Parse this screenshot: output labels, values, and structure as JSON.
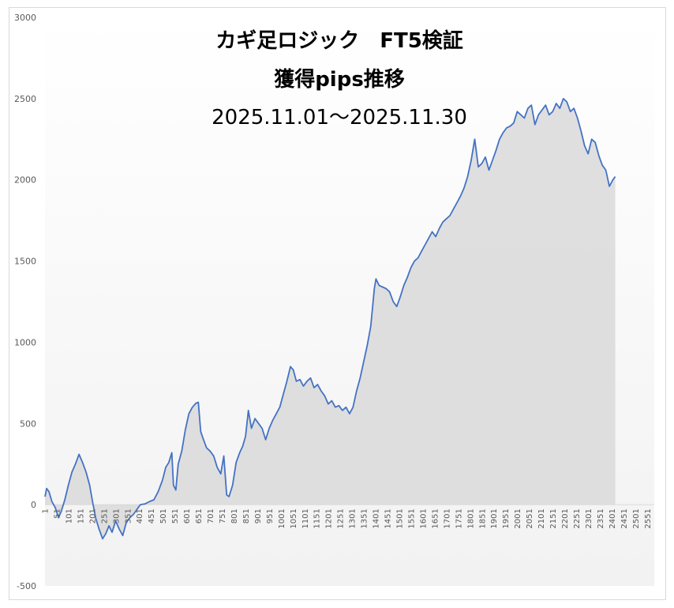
{
  "chart_data": {
    "type": "area",
    "title_lines": [
      "カギ足ロジック　FT5検証",
      "獲得pips推移",
      "2025.11.01～2025.11.30"
    ],
    "xlabel": "",
    "ylabel": "",
    "ylim": [
      -500,
      3000
    ],
    "y_ticks": [
      3000,
      2500,
      2000,
      1500,
      1000,
      500,
      0,
      -500
    ],
    "xlim": [
      1,
      2580
    ],
    "x_ticks": [
      1,
      51,
      101,
      151,
      201,
      251,
      301,
      351,
      401,
      451,
      501,
      551,
      601,
      651,
      701,
      751,
      801,
      851,
      901,
      951,
      1001,
      1051,
      1101,
      1151,
      1201,
      1251,
      1301,
      1351,
      1401,
      1451,
      1501,
      1551,
      1601,
      1651,
      1701,
      1751,
      1801,
      1851,
      1901,
      1951,
      2001,
      2051,
      2101,
      2151,
      2201,
      2251,
      2301,
      2351,
      2401,
      2451,
      2501,
      2551
    ],
    "grid": false,
    "legend": "none",
    "line_color": "#4472c4",
    "fill_color": "#d9d9d9",
    "series": [
      {
        "points": [
          [
            1,
            50
          ],
          [
            8,
            100
          ],
          [
            18,
            80
          ],
          [
            30,
            20
          ],
          [
            45,
            -20
          ],
          [
            58,
            -80
          ],
          [
            70,
            -40
          ],
          [
            85,
            30
          ],
          [
            100,
            120
          ],
          [
            115,
            200
          ],
          [
            130,
            250
          ],
          [
            145,
            310
          ],
          [
            160,
            260
          ],
          [
            175,
            200
          ],
          [
            190,
            120
          ],
          [
            202,
            20
          ],
          [
            215,
            -80
          ],
          [
            230,
            -150
          ],
          [
            245,
            -210
          ],
          [
            258,
            -180
          ],
          [
            272,
            -130
          ],
          [
            285,
            -170
          ],
          [
            300,
            -100
          ],
          [
            315,
            -150
          ],
          [
            330,
            -190
          ],
          [
            345,
            -110
          ],
          [
            360,
            -80
          ],
          [
            375,
            -60
          ],
          [
            390,
            -30
          ],
          [
            405,
            0
          ],
          [
            425,
            5
          ],
          [
            445,
            20
          ],
          [
            462,
            30
          ],
          [
            480,
            80
          ],
          [
            498,
            150
          ],
          [
            512,
            230
          ],
          [
            525,
            260
          ],
          [
            538,
            320
          ],
          [
            545,
            120
          ],
          [
            555,
            90
          ],
          [
            565,
            250
          ],
          [
            580,
            330
          ],
          [
            595,
            460
          ],
          [
            610,
            560
          ],
          [
            625,
            600
          ],
          [
            640,
            625
          ],
          [
            650,
            630
          ],
          [
            660,
            450
          ],
          [
            672,
            400
          ],
          [
            685,
            350
          ],
          [
            700,
            330
          ],
          [
            715,
            300
          ],
          [
            730,
            230
          ],
          [
            745,
            190
          ],
          [
            758,
            300
          ],
          [
            770,
            60
          ],
          [
            780,
            50
          ],
          [
            795,
            120
          ],
          [
            810,
            260
          ],
          [
            825,
            320
          ],
          [
            838,
            360
          ],
          [
            850,
            420
          ],
          [
            862,
            580
          ],
          [
            875,
            470
          ],
          [
            890,
            530
          ],
          [
            905,
            500
          ],
          [
            920,
            470
          ],
          [
            935,
            400
          ],
          [
            950,
            470
          ],
          [
            965,
            520
          ],
          [
            980,
            560
          ],
          [
            995,
            600
          ],
          [
            1010,
            680
          ],
          [
            1025,
            760
          ],
          [
            1040,
            850
          ],
          [
            1052,
            830
          ],
          [
            1065,
            760
          ],
          [
            1080,
            770
          ],
          [
            1095,
            730
          ],
          [
            1110,
            760
          ],
          [
            1125,
            780
          ],
          [
            1140,
            720
          ],
          [
            1155,
            740
          ],
          [
            1170,
            700
          ],
          [
            1185,
            670
          ],
          [
            1200,
            620
          ],
          [
            1215,
            640
          ],
          [
            1230,
            600
          ],
          [
            1245,
            610
          ],
          [
            1260,
            580
          ],
          [
            1275,
            600
          ],
          [
            1290,
            560
          ],
          [
            1305,
            600
          ],
          [
            1320,
            700
          ],
          [
            1335,
            780
          ],
          [
            1350,
            880
          ],
          [
            1365,
            980
          ],
          [
            1380,
            1100
          ],
          [
            1395,
            1330
          ],
          [
            1402,
            1390
          ],
          [
            1415,
            1350
          ],
          [
            1430,
            1340
          ],
          [
            1445,
            1330
          ],
          [
            1460,
            1310
          ],
          [
            1475,
            1250
          ],
          [
            1490,
            1220
          ],
          [
            1505,
            1280
          ],
          [
            1520,
            1350
          ],
          [
            1535,
            1400
          ],
          [
            1550,
            1460
          ],
          [
            1565,
            1500
          ],
          [
            1580,
            1520
          ],
          [
            1595,
            1560
          ],
          [
            1610,
            1600
          ],
          [
            1625,
            1640
          ],
          [
            1640,
            1680
          ],
          [
            1655,
            1650
          ],
          [
            1670,
            1700
          ],
          [
            1685,
            1740
          ],
          [
            1700,
            1760
          ],
          [
            1715,
            1780
          ],
          [
            1730,
            1820
          ],
          [
            1745,
            1860
          ],
          [
            1760,
            1900
          ],
          [
            1775,
            1950
          ],
          [
            1790,
            2020
          ],
          [
            1805,
            2120
          ],
          [
            1820,
            2250
          ],
          [
            1835,
            2080
          ],
          [
            1850,
            2100
          ],
          [
            1865,
            2140
          ],
          [
            1880,
            2060
          ],
          [
            1895,
            2120
          ],
          [
            1910,
            2180
          ],
          [
            1925,
            2250
          ],
          [
            1940,
            2290
          ],
          [
            1955,
            2320
          ],
          [
            1970,
            2330
          ],
          [
            1985,
            2350
          ],
          [
            2000,
            2420
          ],
          [
            2015,
            2400
          ],
          [
            2030,
            2380
          ],
          [
            2045,
            2440
          ],
          [
            2060,
            2460
          ],
          [
            2075,
            2340
          ],
          [
            2090,
            2400
          ],
          [
            2105,
            2430
          ],
          [
            2120,
            2460
          ],
          [
            2135,
            2400
          ],
          [
            2150,
            2420
          ],
          [
            2165,
            2470
          ],
          [
            2180,
            2440
          ],
          [
            2195,
            2500
          ],
          [
            2210,
            2480
          ],
          [
            2225,
            2420
          ],
          [
            2240,
            2440
          ],
          [
            2255,
            2380
          ],
          [
            2270,
            2300
          ],
          [
            2285,
            2210
          ],
          [
            2300,
            2160
          ],
          [
            2315,
            2250
          ],
          [
            2330,
            2230
          ],
          [
            2345,
            2150
          ],
          [
            2360,
            2090
          ],
          [
            2375,
            2060
          ],
          [
            2390,
            1960
          ],
          [
            2405,
            2000
          ],
          [
            2415,
            2020
          ]
        ]
      }
    ]
  }
}
